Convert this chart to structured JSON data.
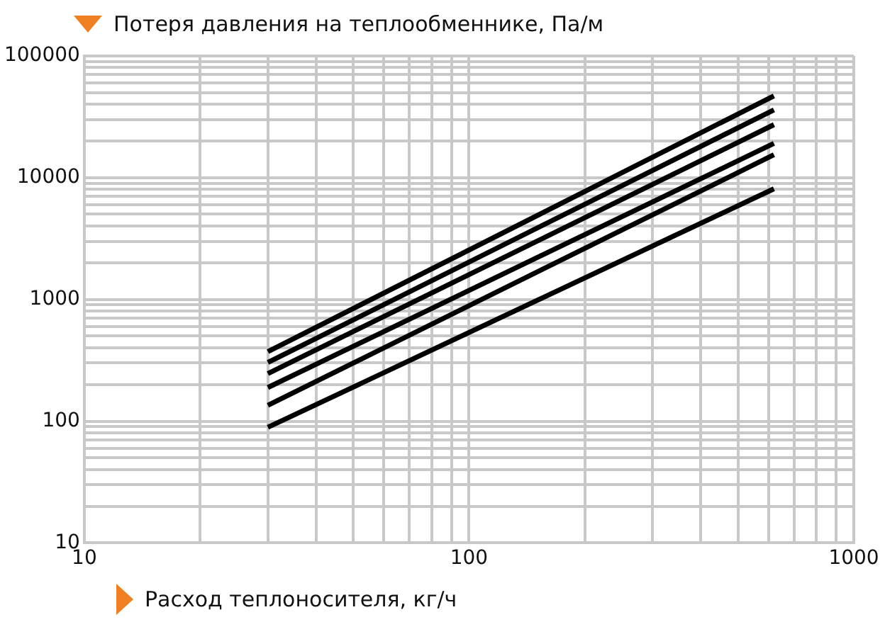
{
  "chart_data": {
    "type": "line",
    "ylabel": "Потеря давления на теплообменнике, Па/м",
    "xlabel": "Расход теплоносителя, кг/ч",
    "log": "xy",
    "grid": true,
    "legend": false,
    "marker": "none",
    "line_style": "solid",
    "x": [
      30,
      620
    ],
    "series": [
      {
        "color": "#000000",
        "values": [
          372,
          46900
        ]
      },
      {
        "color": "#000000",
        "values": [
          303,
          36000
        ]
      },
      {
        "color": "#000000",
        "values": [
          246,
          27200
        ]
      },
      {
        "color": "#000000",
        "values": [
          189,
          19100
        ]
      },
      {
        "color": "#000000",
        "values": [
          135,
          15400
        ]
      },
      {
        "color": "#000000",
        "values": [
          89,
          8090
        ]
      }
    ],
    "xlim": [
      10,
      1000
    ],
    "ylim": [
      10,
      100000
    ],
    "xticks": [
      10,
      {
        "value": 20,
        "label": null
      },
      {
        "value": 30,
        "label": null
      },
      {
        "value": 40,
        "label": null
      },
      {
        "value": 50,
        "label": null
      },
      {
        "value": 60,
        "label": null
      },
      {
        "value": 70,
        "label": null
      },
      {
        "value": 80,
        "label": null
      },
      {
        "value": 90,
        "label": null
      },
      100,
      {
        "value": 200,
        "label": null
      },
      {
        "value": 300,
        "label": null
      },
      {
        "value": 400,
        "label": null
      },
      {
        "value": 500,
        "label": null
      },
      {
        "value": 600,
        "label": null
      },
      {
        "value": 700,
        "label": null
      },
      {
        "value": 800,
        "label": null
      },
      {
        "value": 900,
        "label": null
      },
      1000
    ],
    "yticks": [
      10,
      {
        "value": 20,
        "label": null
      },
      {
        "value": 30,
        "label": null
      },
      {
        "value": 40,
        "label": null
      },
      {
        "value": 50,
        "label": null
      },
      {
        "value": 60,
        "label": null
      },
      {
        "value": 70,
        "label": null
      },
      {
        "value": 80,
        "label": null
      },
      {
        "value": 90,
        "label": null
      },
      100,
      {
        "value": 200,
        "label": null
      },
      {
        "value": 300,
        "label": null
      },
      {
        "value": 400,
        "label": null
      },
      {
        "value": 500,
        "label": null
      },
      {
        "value": 600,
        "label": null
      },
      {
        "value": 700,
        "label": null
      },
      {
        "value": 800,
        "label": null
      },
      {
        "value": 900,
        "label": null
      },
      1000,
      {
        "value": 2000,
        "label": null
      },
      {
        "value": 3000,
        "label": null
      },
      {
        "value": 4000,
        "label": null
      },
      {
        "value": 5000,
        "label": null
      },
      {
        "value": 6000,
        "label": null
      },
      {
        "value": 7000,
        "label": null
      },
      {
        "value": 8000,
        "label": null
      },
      {
        "value": 9000,
        "label": null
      },
      10000,
      {
        "value": 20000,
        "label": null
      },
      {
        "value": 30000,
        "label": null
      },
      {
        "value": 40000,
        "label": null
      },
      {
        "value": 50000,
        "label": null
      },
      {
        "value": 60000,
        "label": null
      },
      {
        "value": 70000,
        "label": null
      },
      {
        "value": 80000,
        "label": null
      },
      {
        "value": 90000,
        "label": null
      },
      100000
    ]
  }
}
